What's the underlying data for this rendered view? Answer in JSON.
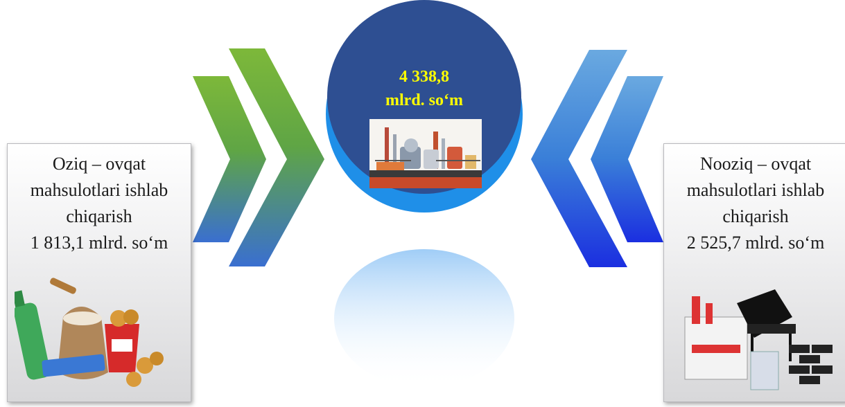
{
  "center": {
    "value": "4 338,8",
    "unit": "mlrd. so‘m",
    "image_icon": "factory-icon"
  },
  "left_card": {
    "line1": "Oziq – ovqat",
    "line2": "mahsulotlari ishlab",
    "line3": "chiqarish",
    "value": "1 813,1 mlrd. so‘m",
    "image_icon": "food-products-icon"
  },
  "right_card": {
    "line1": "Nooziq – ovqat",
    "line2": "mahsulotlari ishlab",
    "line3": "chiqarish",
    "value": "2 525,7 mlrd. so‘m",
    "image_icon": "non-food-products-icon"
  },
  "colors": {
    "circle_dark": "#2e4f92",
    "circle_light": "#1f8fe8",
    "left_arrows": "#6fae3a",
    "right_arrows": "#3f8fd6",
    "value_text": "#ffff00"
  }
}
